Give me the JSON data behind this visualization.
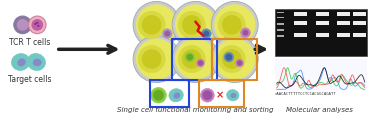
{
  "background_color": "#ffffff",
  "title_text": "Single cell functional monitoring and sorting",
  "right_title": "Molecular analyses",
  "left_top_label": "TCR T cells",
  "left_bot_label": "Target cells",
  "arrow_color": "#222222",
  "blue_box_color": "#2244dd",
  "orange_box_color": "#dd8822",
  "font_size_label": 5.5,
  "font_size_title": 5.0
}
